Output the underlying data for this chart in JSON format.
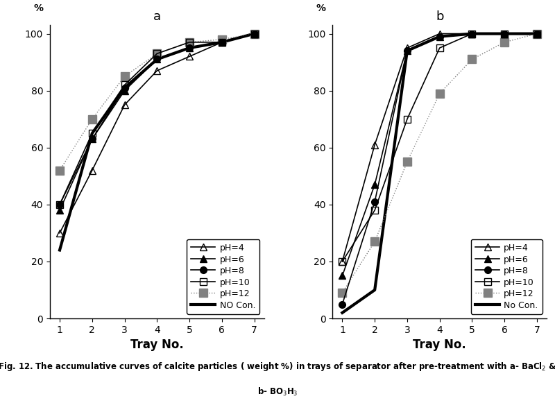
{
  "panel_a": {
    "title": "a",
    "xlabel": "Tray No.",
    "series": {
      "pH4": {
        "x": [
          1,
          2,
          3,
          4,
          5,
          6,
          7
        ],
        "y": [
          30,
          52,
          75,
          87,
          92,
          97,
          100
        ],
        "color": "black",
        "marker": "^",
        "mfc": "none",
        "mec": "black",
        "lw": 1.2,
        "ls": "-",
        "label": "pH=4",
        "ms": 7
      },
      "pH6": {
        "x": [
          1,
          2,
          3,
          4,
          5,
          6,
          7
        ],
        "y": [
          38,
          63,
          80,
          91,
          95,
          97,
          100
        ],
        "color": "black",
        "marker": "^",
        "mfc": "black",
        "mec": "black",
        "lw": 1.2,
        "ls": "-",
        "label": "pH=6",
        "ms": 7
      },
      "pH8": {
        "x": [
          1,
          2,
          3,
          4,
          5,
          6,
          7
        ],
        "y": [
          40,
          63,
          81,
          91,
          95,
          97,
          100
        ],
        "color": "black",
        "marker": "o",
        "mfc": "black",
        "mec": "black",
        "lw": 1.2,
        "ls": "-",
        "label": "pH=8",
        "ms": 7
      },
      "pH10": {
        "x": [
          1,
          2,
          3,
          4,
          5,
          6,
          7
        ],
        "y": [
          40,
          65,
          82,
          93,
          97,
          97,
          100
        ],
        "color": "black",
        "marker": "s",
        "mfc": "none",
        "mec": "black",
        "lw": 1.2,
        "ls": "-",
        "label": "pH=10",
        "ms": 7
      },
      "pH12": {
        "x": [
          1,
          2,
          3,
          4,
          5,
          6,
          7
        ],
        "y": [
          52,
          70,
          85,
          93,
          97,
          98,
          100
        ],
        "color": "gray",
        "marker": "s",
        "mfc": "gray",
        "mec": "gray",
        "lw": 1.0,
        "ls": "dotted",
        "label": "pH=12",
        "ms": 8
      },
      "NOCon": {
        "x": [
          1,
          2,
          3,
          4,
          5,
          6,
          7
        ],
        "y": [
          24,
          65,
          81,
          91,
          95,
          97,
          100
        ],
        "color": "black",
        "marker": "None",
        "mfc": "black",
        "mec": "black",
        "lw": 3.0,
        "ls": "-",
        "label": "NO Con.",
        "ms": 0
      }
    }
  },
  "panel_b": {
    "title": "b",
    "xlabel": "Tray No.",
    "series": {
      "pH4": {
        "x": [
          1,
          2,
          3,
          4,
          5,
          6,
          7
        ],
        "y": [
          20,
          61,
          95,
          100,
          100,
          100,
          100
        ],
        "color": "black",
        "marker": "^",
        "mfc": "none",
        "mec": "black",
        "lw": 1.2,
        "ls": "-",
        "label": "pH=4",
        "ms": 7
      },
      "pH6": {
        "x": [
          1,
          2,
          3,
          4,
          5,
          6,
          7
        ],
        "y": [
          15,
          47,
          94,
          99,
          100,
          100,
          100
        ],
        "color": "black",
        "marker": "^",
        "mfc": "black",
        "mec": "black",
        "lw": 1.2,
        "ls": "-",
        "label": "pH=6",
        "ms": 7
      },
      "pH8": {
        "x": [
          1,
          2,
          3,
          4,
          5,
          6,
          7
        ],
        "y": [
          5,
          41,
          94,
          99,
          100,
          100,
          100
        ],
        "color": "black",
        "marker": "o",
        "mfc": "black",
        "mec": "black",
        "lw": 1.2,
        "ls": "-",
        "label": "pH=8",
        "ms": 7
      },
      "pH10": {
        "x": [
          1,
          2,
          3,
          4,
          5,
          6,
          7
        ],
        "y": [
          20,
          38,
          70,
          95,
          100,
          100,
          100
        ],
        "color": "black",
        "marker": "s",
        "mfc": "none",
        "mec": "black",
        "lw": 1.2,
        "ls": "-",
        "label": "pH=10",
        "ms": 7
      },
      "pH12": {
        "x": [
          1,
          2,
          3,
          4,
          5,
          6,
          7
        ],
        "y": [
          9,
          27,
          55,
          79,
          91,
          97,
          100
        ],
        "color": "gray",
        "marker": "s",
        "mfc": "gray",
        "mec": "gray",
        "lw": 1.0,
        "ls": "dotted",
        "label": "pH=12",
        "ms": 8
      },
      "NOCon": {
        "x": [
          1,
          2,
          3,
          4,
          5,
          6,
          7
        ],
        "y": [
          2,
          10,
          94,
          99,
          100,
          100,
          100
        ],
        "color": "black",
        "marker": "None",
        "mfc": "black",
        "mec": "black",
        "lw": 3.0,
        "ls": "-",
        "label": "No Con.",
        "ms": 0
      }
    }
  },
  "ylim": [
    0,
    103
  ],
  "yticks": [
    0,
    20,
    40,
    60,
    80,
    100
  ],
  "xticks": [
    1,
    2,
    3,
    4,
    5,
    6,
    7
  ],
  "xlim": [
    0.7,
    7.3
  ]
}
